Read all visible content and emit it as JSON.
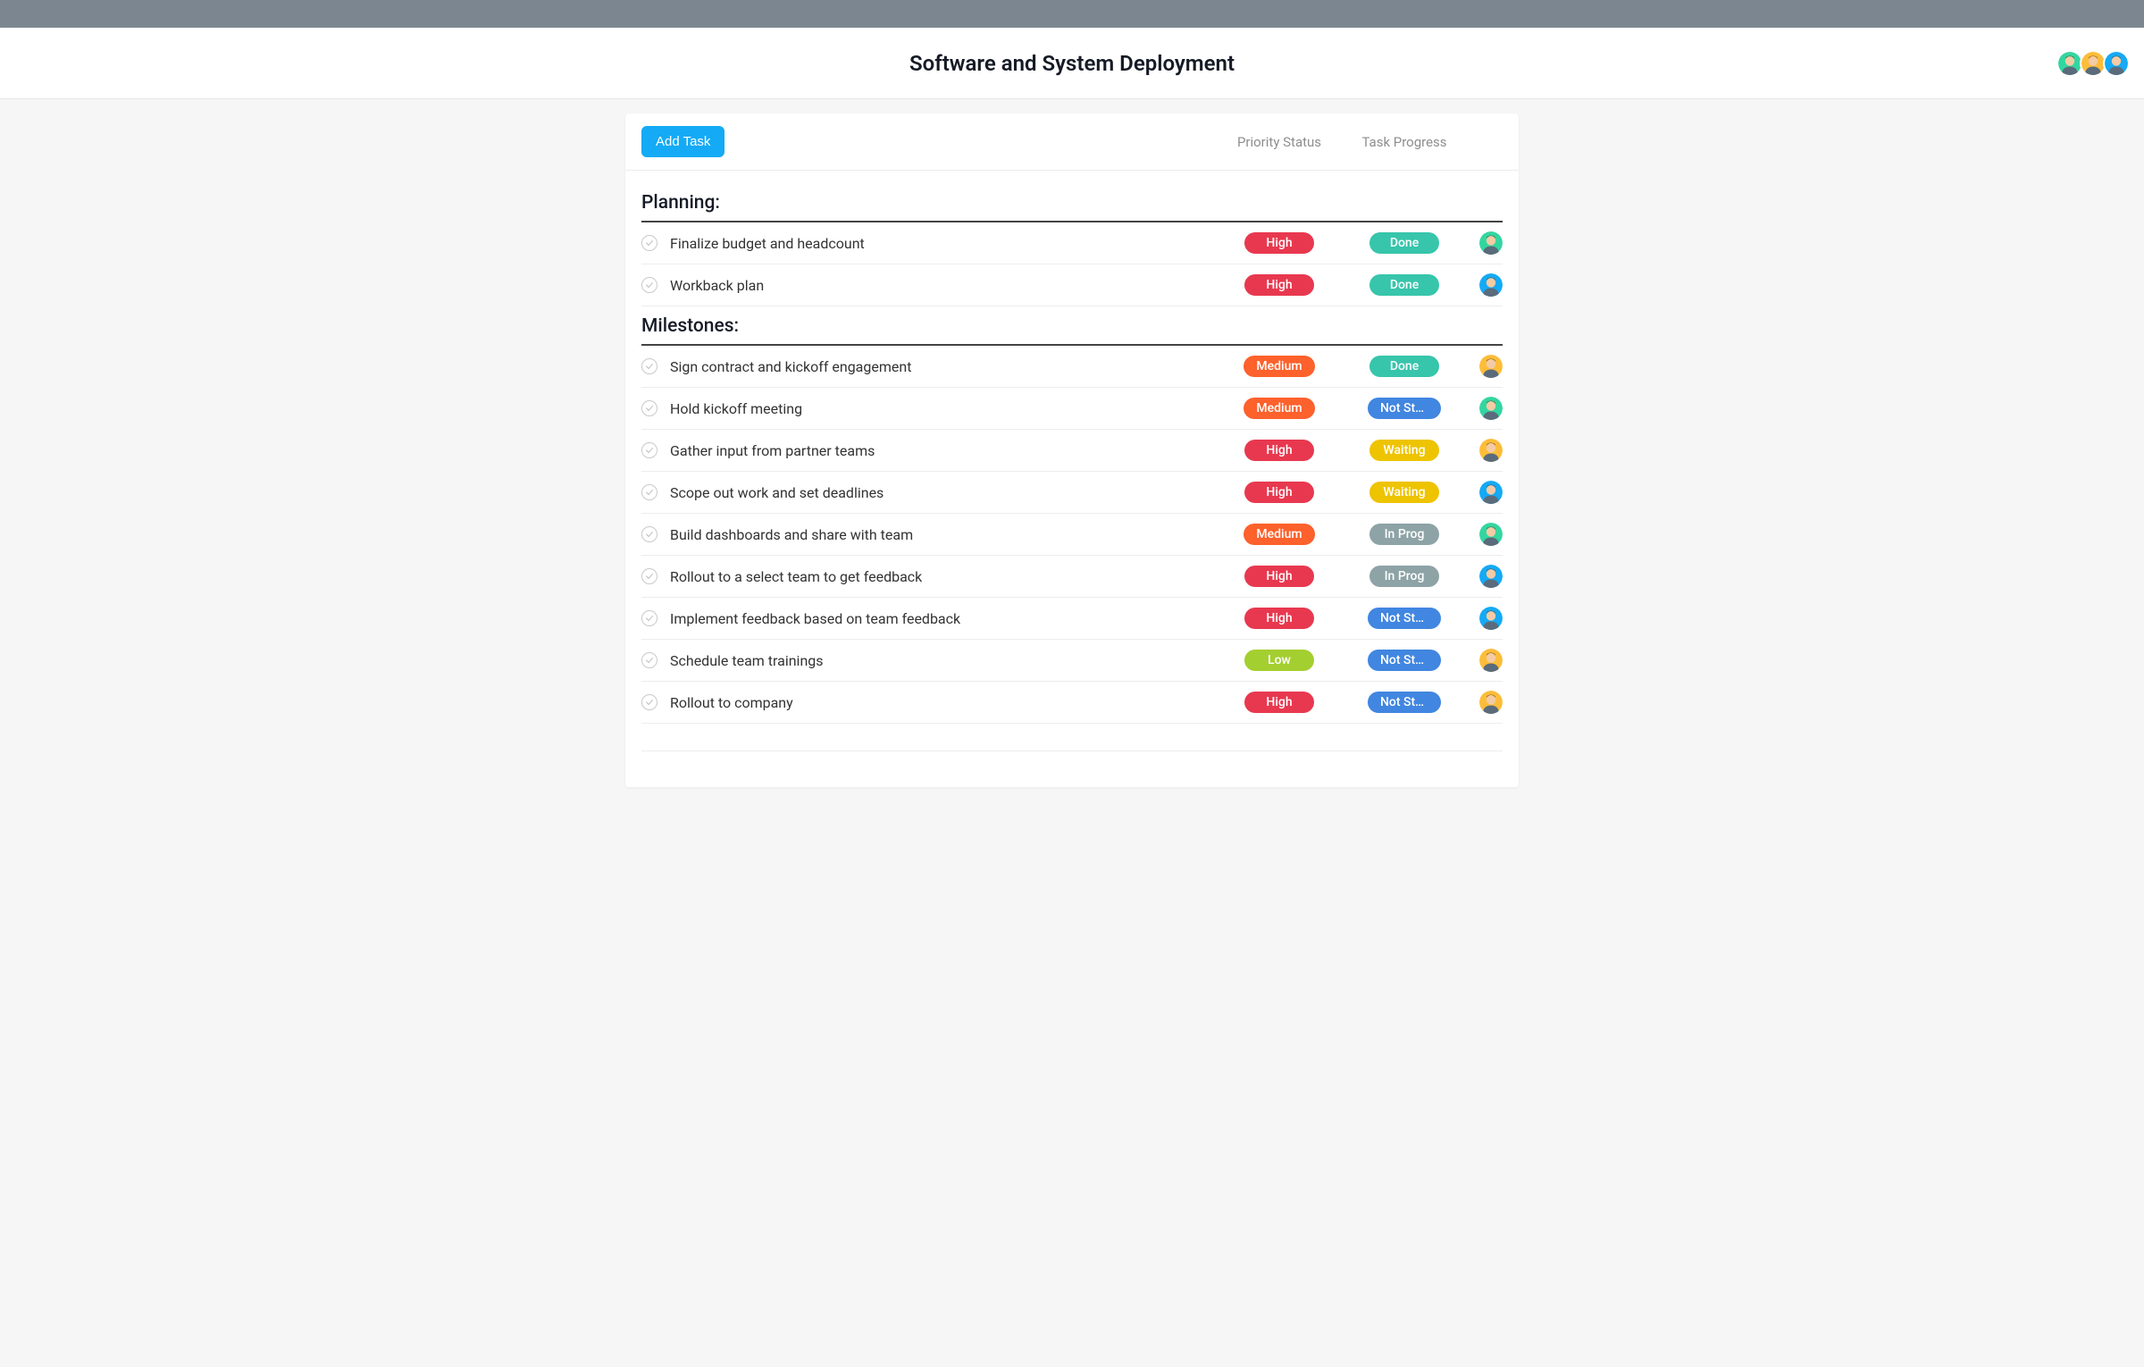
{
  "colors": {
    "top_bar": "#7c8691",
    "page_bg": "#f6f6f6",
    "panel_bg": "#ffffff",
    "add_task_btn": "#14aaf5",
    "priority_high": "#e8384f",
    "priority_medium": "#fd612c",
    "priority_low": "#a4cf30",
    "progress_done": "#37c5ab",
    "progress_notstarted": "#4186e0",
    "progress_waiting": "#eec300",
    "progress_inprog": "#8da3a6",
    "avatar_green": "#33d6a0",
    "avatar_yellow": "#fdbd39",
    "avatar_blue": "#14aaf5"
  },
  "header": {
    "title": "Software and System Deployment",
    "avatars": [
      {
        "bg_key": "avatar_green"
      },
      {
        "bg_key": "avatar_yellow"
      },
      {
        "bg_key": "avatar_blue"
      }
    ]
  },
  "toolbar": {
    "add_task_label": "Add Task",
    "col_priority": "Priority Status",
    "col_progress": "Task Progress"
  },
  "sections": [
    {
      "title": "Planning:",
      "tasks": [
        {
          "title": "Finalize budget and headcount",
          "priority": "High",
          "priority_color_key": "priority_high",
          "progress": "Done",
          "progress_color_key": "progress_done",
          "assignee_bg_key": "avatar_green"
        },
        {
          "title": "Workback plan",
          "priority": "High",
          "priority_color_key": "priority_high",
          "progress": "Done",
          "progress_color_key": "progress_done",
          "assignee_bg_key": "avatar_blue"
        }
      ]
    },
    {
      "title": "Milestones:",
      "tasks": [
        {
          "title": "Sign contract and kickoff engagement",
          "priority": "Medium",
          "priority_color_key": "priority_medium",
          "progress": "Done",
          "progress_color_key": "progress_done",
          "assignee_bg_key": "avatar_yellow"
        },
        {
          "title": "Hold kickoff meeting",
          "priority": "Medium",
          "priority_color_key": "priority_medium",
          "progress": "Not Star…",
          "progress_color_key": "progress_notstarted",
          "assignee_bg_key": "avatar_green"
        },
        {
          "title": "Gather input from partner teams",
          "priority": "High",
          "priority_color_key": "priority_high",
          "progress": "Waiting",
          "progress_color_key": "progress_waiting",
          "assignee_bg_key": "avatar_yellow"
        },
        {
          "title": "Scope out work and set deadlines",
          "priority": "High",
          "priority_color_key": "priority_high",
          "progress": "Waiting",
          "progress_color_key": "progress_waiting",
          "assignee_bg_key": "avatar_blue"
        },
        {
          "title": "Build dashboards and share with team",
          "priority": "Medium",
          "priority_color_key": "priority_medium",
          "progress": "In Prog",
          "progress_color_key": "progress_inprog",
          "assignee_bg_key": "avatar_green"
        },
        {
          "title": "Rollout to a select team to get feedback",
          "priority": "High",
          "priority_color_key": "priority_high",
          "progress": "In Prog",
          "progress_color_key": "progress_inprog",
          "assignee_bg_key": "avatar_blue"
        },
        {
          "title": "Implement feedback based on team feedback",
          "priority": "High",
          "priority_color_key": "priority_high",
          "progress": "Not Star…",
          "progress_color_key": "progress_notstarted",
          "assignee_bg_key": "avatar_blue"
        },
        {
          "title": "Schedule team trainings",
          "priority": "Low",
          "priority_color_key": "priority_low",
          "progress": "Not Star…",
          "progress_color_key": "progress_notstarted",
          "assignee_bg_key": "avatar_yellow"
        },
        {
          "title": "Rollout to company",
          "priority": "High",
          "priority_color_key": "priority_high",
          "progress": "Not Star…",
          "progress_color_key": "progress_notstarted",
          "assignee_bg_key": "avatar_yellow"
        }
      ]
    }
  ]
}
